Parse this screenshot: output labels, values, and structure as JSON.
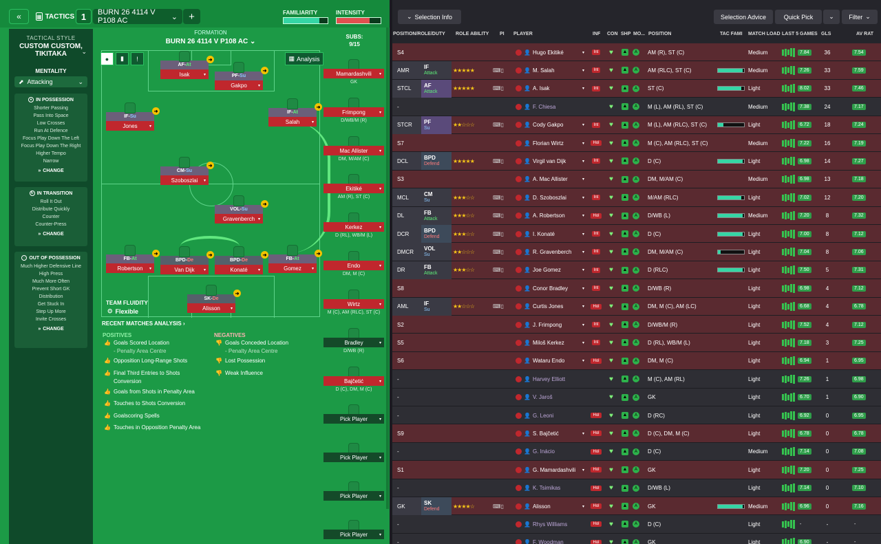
{
  "header": {
    "tactics_label": "TACTICS",
    "tactic_num": "1",
    "tactic_name": "BURN 26 4114 V P108 AC",
    "familiarity_label": "FAMILIARITY",
    "intensity_label": "INTENSITY",
    "familiarity_level": 0.82,
    "intensity_level": 0.75
  },
  "sidebar": {
    "tactical_style_label": "TACTICAL STYLE",
    "tactical_style": "CUSTOM CUSTOM, TIKITAKA",
    "mentality_label": "MENTALITY",
    "mentality": "Attacking",
    "in_possession": {
      "title": "IN POSSESSION",
      "items": [
        "Shorter Passing",
        "Pass Into Space",
        "Low Crosses",
        "Run At Defence",
        "Focus Play Down The Left",
        "Focus Play Down The Right",
        "Higher Tempo",
        "Narrow"
      ],
      "change": "CHANGE"
    },
    "in_transition": {
      "title": "IN TRANSITION",
      "items": [
        "Roll It Out",
        "Distribute Quickly",
        "Counter",
        "Counter-Press"
      ],
      "change": "CHANGE"
    },
    "out_of_possession": {
      "title": "OUT OF POSSESSION",
      "items": [
        "Much Higher Defensive Line",
        "High Press",
        "Much More Often",
        "Prevent Short GK",
        "Distribution",
        "Get Stuck In",
        "Step Up More",
        "Invite Crosses"
      ],
      "change": "CHANGE"
    }
  },
  "formation": {
    "label": "FORMATION",
    "name": "BURN 26 4114 V P108 AC",
    "analysis": "Analysis",
    "team_fluidity_label": "TEAM FLUIDITY",
    "team_fluidity": "Flexible",
    "players": [
      {
        "role": "AF",
        "duty": "At",
        "name": "Isak"
      },
      {
        "role": "PF",
        "duty": "Su",
        "name": "Gakpo"
      },
      {
        "role": "IF",
        "duty": "Su",
        "name": "Jones"
      },
      {
        "role": "IF",
        "duty": "At",
        "name": "Salah"
      },
      {
        "role": "CM",
        "duty": "Su",
        "name": "Szoboszlai"
      },
      {
        "role": "VOL",
        "duty": "Su",
        "name": "Gravenberch"
      },
      {
        "role": "FB",
        "duty": "At",
        "name": "Robertson"
      },
      {
        "role": "BPD",
        "duty": "De",
        "name": "Van Dijk"
      },
      {
        "role": "BPD",
        "duty": "De",
        "name": "Konaté"
      },
      {
        "role": "FB",
        "duty": "At",
        "name": "Gomez"
      },
      {
        "role": "SK",
        "duty": "De",
        "name": "Alisson"
      }
    ]
  },
  "subs": {
    "title": "SUBS:",
    "count": "9/15",
    "cards": [
      {
        "name": "Mamardashvili",
        "pos": "GK"
      },
      {
        "name": "Frimpong",
        "pos": "D/WB/M (R)"
      },
      {
        "name": "Mac Allister",
        "pos": "DM, M/AM (C)"
      },
      {
        "name": "Ekitiké",
        "pos": "AM (R), ST (C)"
      },
      {
        "name": "Kerkez",
        "pos": "D (RL), WB/M (L)"
      },
      {
        "name": "Endo",
        "pos": "DM, M (C)"
      },
      {
        "name": "Wirtz",
        "pos": "M (C), AM (RLC), ST (C)"
      },
      {
        "name": "Bradley",
        "pos": "D/WB (R)"
      },
      {
        "name": "Bajčetić",
        "pos": "D (C), DM, M (C)"
      },
      {
        "name": "Pick Player",
        "pos": ""
      },
      {
        "name": "Pick Player",
        "pos": ""
      },
      {
        "name": "Pick Player",
        "pos": ""
      },
      {
        "name": "Pick Player",
        "pos": ""
      }
    ]
  },
  "analysis": {
    "title": "RECENT MATCHES ANALYSIS",
    "positives_title": "POSITIVES",
    "negatives_title": "NEGATIVES",
    "positives": [
      {
        "text": "Goals Scored Location",
        "sub": "- Penalty Area Centre"
      },
      {
        "text": "Opposition Long-Range Shots",
        "sub": ""
      },
      {
        "text": "Final Third Entries to Shots Conversion",
        "sub": ""
      },
      {
        "text": "Goals from Shots in Penalty Area",
        "sub": ""
      },
      {
        "text": "Touches to Shots Conversion",
        "sub": ""
      },
      {
        "text": "Goalscoring Spells",
        "sub": ""
      },
      {
        "text": "Touches in Opposition Penalty Area",
        "sub": ""
      }
    ],
    "negatives": [
      {
        "text": "Goals Conceded Location",
        "sub": "- Penalty Area Centre"
      },
      {
        "text": "Lost Possession",
        "sub": ""
      },
      {
        "text": "Weak Influence",
        "sub": ""
      }
    ]
  },
  "right_toolbar": {
    "selection_info": "Selection Info",
    "selection_advice": "Selection Advice",
    "quick_pick": "Quick Pick",
    "filter": "Filter"
  },
  "table": {
    "headers": [
      "POSITION/ROLE/DUTY",
      "ROLE ABILITY",
      "PI",
      "PLAYER",
      "INF",
      "CON",
      "SHP",
      "MO...",
      "POSITION",
      "TAC FAMI",
      "MATCH LOAD",
      "LAST 5 GAMES",
      "GLS",
      "AV RAT"
    ],
    "rows": [
      {
        "slot": "S4",
        "role": "",
        "duty": "",
        "stars": "",
        "player": "Hugo Ekitiké",
        "inf": "Int",
        "position": "AM (R), ST (C)",
        "fam": 0,
        "load": "Medium",
        "form": "7.84",
        "gls": "36",
        "avr": "7.54",
        "bg": "#5a2a30"
      },
      {
        "slot": "AMR",
        "role": "IF",
        "duty": "Attack",
        "stars": "★★★★★",
        "player": "M. Salah",
        "inf": "Int",
        "position": "AM (RLC), ST (C)",
        "fam": 0.95,
        "load": "Medium",
        "form": "7.26",
        "gls": "33",
        "avr": "7.59",
        "bg": "#5a2a30"
      },
      {
        "slot": "STCL",
        "role": "AF",
        "duty": "Attack",
        "stars": "★★★★★",
        "player": "A. Isak",
        "inf": "Int",
        "position": "ST (C)",
        "fam": 0.9,
        "load": "Light",
        "form": "8.02",
        "gls": "33",
        "avr": "7.46",
        "bg": "#5a2a30"
      },
      {
        "slot": "-",
        "role": "",
        "duty": "",
        "stars": "",
        "player": "F. Chiesa",
        "inf": "",
        "position": "M (L), AM (RL), ST (C)",
        "fam": 0,
        "load": "Medium",
        "form": "7.38",
        "gls": "24",
        "avr": "7.17",
        "bg": "#2e2e34"
      },
      {
        "slot": "STCR",
        "role": "PF",
        "duty": "Su",
        "stars": "★★☆☆☆",
        "player": "Cody Gakpo",
        "inf": "Int",
        "position": "M (L), AM (RLC), ST (C)",
        "fam": 0.2,
        "load": "Light",
        "form": "6.72",
        "gls": "18",
        "avr": "7.24",
        "bg": "#5a2a30"
      },
      {
        "slot": "S7",
        "role": "",
        "duty": "",
        "stars": "",
        "player": "Florian Wirtz",
        "inf": "Hol",
        "position": "M (C), AM (RLC), ST (C)",
        "fam": 0,
        "load": "Medium",
        "form": "7.22",
        "gls": "16",
        "avr": "7.19",
        "bg": "#5a2a30"
      },
      {
        "slot": "DCL",
        "role": "BPD",
        "duty": "Defend",
        "stars": "★★★★★",
        "player": "Virgil van Dijk",
        "inf": "Int",
        "position": "D (C)",
        "fam": 0.95,
        "load": "Light",
        "form": "6.98",
        "gls": "14",
        "avr": "7.27",
        "bg": "#5a2a30"
      },
      {
        "slot": "S3",
        "role": "",
        "duty": "",
        "stars": "",
        "player": "A. Mac Allister",
        "inf": "",
        "position": "DM, M/AM (C)",
        "fam": 0,
        "load": "Medium",
        "form": "6.98",
        "gls": "13",
        "avr": "7.18",
        "bg": "#5a2a30"
      },
      {
        "slot": "MCL",
        "role": "CM",
        "duty": "Su",
        "stars": "★★★☆☆",
        "player": "D. Szoboszlai",
        "inf": "Int",
        "position": "M/AM (RLC)",
        "fam": 0.9,
        "load": "Light",
        "form": "7.02",
        "gls": "12",
        "avr": "7.20",
        "bg": "#5a2a30"
      },
      {
        "slot": "DL",
        "role": "FB",
        "duty": "Attack",
        "stars": "★★★☆☆",
        "player": "A. Robertson",
        "inf": "Hol",
        "position": "D/WB (L)",
        "fam": 0.95,
        "load": "Medium",
        "form": "7.20",
        "gls": "8",
        "avr": "7.32",
        "bg": "#5a2a30"
      },
      {
        "slot": "DCR",
        "role": "BPD",
        "duty": "Defend",
        "stars": "★★★☆☆",
        "player": "I. Konaté",
        "inf": "Int",
        "position": "D (C)",
        "fam": 0.95,
        "load": "Light",
        "form": "7.00",
        "gls": "8",
        "avr": "7.12",
        "bg": "#5a2a30"
      },
      {
        "slot": "DMCR",
        "role": "VOL",
        "duty": "Su",
        "stars": "★★☆☆☆",
        "player": "R. Gravenberch",
        "inf": "Int",
        "position": "DM, M/AM (C)",
        "fam": 0.1,
        "load": "Light",
        "form": "7.04",
        "gls": "8",
        "avr": "7.06",
        "bg": "#5a2a30"
      },
      {
        "slot": "DR",
        "role": "FB",
        "duty": "Attack",
        "stars": "★★★☆☆",
        "player": "Joe Gomez",
        "inf": "Int",
        "position": "D (RLC)",
        "fam": 0.95,
        "load": "Light",
        "form": "7.50",
        "gls": "5",
        "avr": "7.31",
        "bg": "#5a2a30"
      },
      {
        "slot": "S8",
        "role": "",
        "duty": "",
        "stars": "",
        "player": "Conor Bradley",
        "inf": "Int",
        "position": "D/WB (R)",
        "fam": 0,
        "load": "Light",
        "form": "6.98",
        "gls": "4",
        "avr": "7.12",
        "bg": "#5a2a30"
      },
      {
        "slot": "AML",
        "role": "IF",
        "duty": "Su",
        "stars": "★★☆☆☆",
        "player": "Curtis Jones",
        "inf": "Hol",
        "position": "DM, M (C), AM (LC)",
        "fam": 0,
        "load": "Light",
        "form": "6.68",
        "gls": "4",
        "avr": "6.78",
        "bg": "#5a2a30"
      },
      {
        "slot": "S2",
        "role": "",
        "duty": "",
        "stars": "",
        "player": "J. Frimpong",
        "inf": "Int",
        "position": "D/WB/M (R)",
        "fam": 0,
        "load": "Light",
        "form": "7.52",
        "gls": "4",
        "avr": "7.12",
        "bg": "#5a2a30"
      },
      {
        "slot": "S5",
        "role": "",
        "duty": "",
        "stars": "",
        "player": "Miloš Kerkez",
        "inf": "Int",
        "position": "D (RL), WB/M (L)",
        "fam": 0,
        "load": "Light",
        "form": "7.18",
        "gls": "3",
        "avr": "7.25",
        "bg": "#5a2a30"
      },
      {
        "slot": "S6",
        "role": "",
        "duty": "",
        "stars": "",
        "player": "Wataru Endo",
        "inf": "Hol",
        "position": "DM, M (C)",
        "fam": 0,
        "load": "Light",
        "form": "6.94",
        "gls": "1",
        "avr": "6.95",
        "bg": "#5a2a30"
      },
      {
        "slot": "-",
        "role": "",
        "duty": "",
        "stars": "",
        "player": "Harvey Elliott",
        "inf": "",
        "position": "M (C), AM (RL)",
        "fam": 0,
        "load": "Light",
        "form": "7.26",
        "gls": "1",
        "avr": "6.98",
        "bg": "#2e2e34"
      },
      {
        "slot": "-",
        "role": "",
        "duty": "",
        "stars": "",
        "player": "V. Jaroš",
        "inf": "",
        "position": "GK",
        "fam": 0,
        "load": "Light",
        "form": "6.70",
        "gls": "1",
        "avr": "6.90",
        "bg": "#2e2e34"
      },
      {
        "slot": "-",
        "role": "",
        "duty": "",
        "stars": "",
        "player": "G. Leoni",
        "inf": "Hol",
        "position": "D (RC)",
        "fam": 0,
        "load": "Light",
        "form": "6.92",
        "gls": "0",
        "avr": "6.95",
        "bg": "#2e2e34"
      },
      {
        "slot": "S9",
        "role": "",
        "duty": "",
        "stars": "",
        "player": "S. Bajčetić",
        "inf": "Hol",
        "position": "D (C), DM, M (C)",
        "fam": 0,
        "load": "Light",
        "form": "6.78",
        "gls": "0",
        "avr": "6.78",
        "bg": "#5a2a30"
      },
      {
        "slot": "-",
        "role": "",
        "duty": "",
        "stars": "",
        "player": "G. Inácio",
        "inf": "Hol",
        "position": "D (C)",
        "fam": 0,
        "load": "Medium",
        "form": "7.14",
        "gls": "0",
        "avr": "7.08",
        "bg": "#2e2e34"
      },
      {
        "slot": "S1",
        "role": "",
        "duty": "",
        "stars": "",
        "player": "G. Mamardashvili",
        "inf": "Hol",
        "position": "GK",
        "fam": 0,
        "load": "Light",
        "form": "7.20",
        "gls": "0",
        "avr": "7.25",
        "bg": "#5a2a30"
      },
      {
        "slot": "-",
        "role": "",
        "duty": "",
        "stars": "",
        "player": "K. Tsimikas",
        "inf": "Hol",
        "position": "D/WB (L)",
        "fam": 0,
        "load": "Light",
        "form": "7.14",
        "gls": "0",
        "avr": "7.10",
        "bg": "#2e2e34"
      },
      {
        "slot": "GK",
        "role": "SK",
        "duty": "Defend",
        "stars": "★★★★☆",
        "player": "Alisson",
        "inf": "Hol",
        "position": "GK",
        "fam": 0.95,
        "load": "Medium",
        "form": "6.96",
        "gls": "0",
        "avr": "7.16",
        "bg": "#5a2a30"
      },
      {
        "slot": "-",
        "role": "",
        "duty": "",
        "stars": "",
        "player": "Rhys Williams",
        "inf": "Hol",
        "position": "D (C)",
        "fam": 0,
        "load": "Light",
        "form": "-",
        "gls": "-",
        "avr": "-",
        "bg": "#2e2e34"
      },
      {
        "slot": "-",
        "role": "",
        "duty": "",
        "stars": "",
        "player": "F. Woodman",
        "inf": "Hol",
        "position": "GK",
        "fam": 0,
        "load": "Light",
        "form": "6.90",
        "gls": "-",
        "avr": "-",
        "bg": "#2e2e34"
      }
    ]
  }
}
